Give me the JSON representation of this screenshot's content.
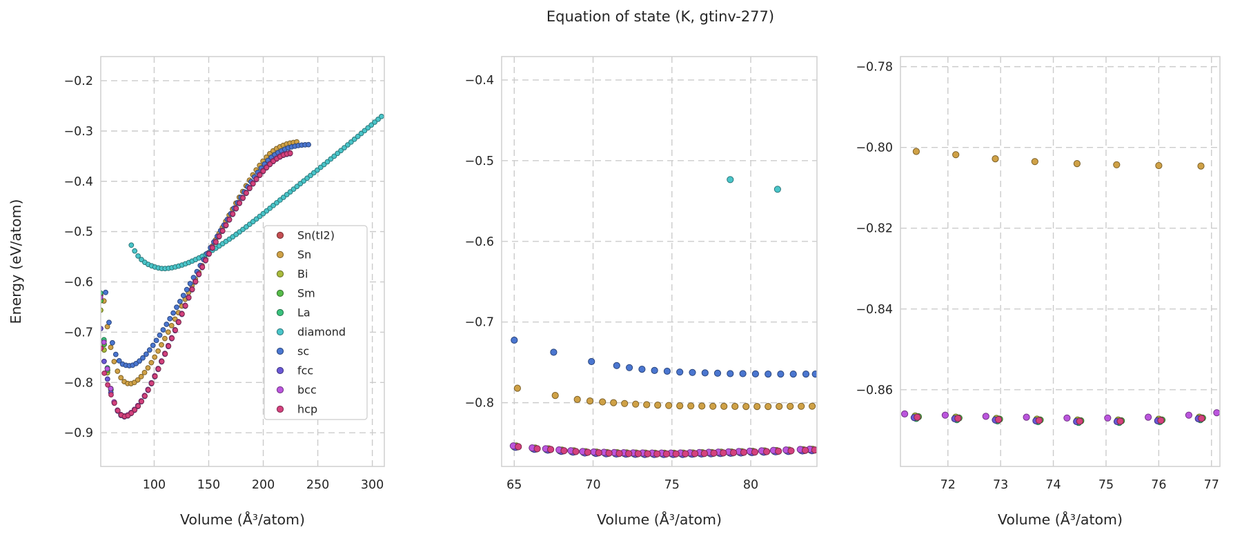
{
  "title": "Equation of state (K, gtinv-277)",
  "ylabel": "Energy (eV/atom)",
  "xlabel": "Volume (Å³/atom)",
  "style": {
    "text_color": "#262626",
    "grid_color": "#cbcbcb",
    "spine_color": "#cfcfcf",
    "background": "#ffffff",
    "series_colors": {
      "Sn(tI2)": "#c44e52",
      "Sn": "#cfa146",
      "Bi": "#a9ba3c",
      "Sm": "#57bb4a",
      "La": "#3ac17d",
      "diamond": "#49c5c9",
      "sc": "#4a76d0",
      "fcc": "#6a58d5",
      "bcc": "#bb55dd",
      "hcp": "#d4417e"
    }
  },
  "legend": {
    "items": [
      "Sn(tI2)",
      "Sn",
      "Bi",
      "Sm",
      "La",
      "diamond",
      "sc",
      "fcc",
      "bcc",
      "hcp"
    ]
  },
  "chart_data": [
    {
      "id": "overview",
      "type": "scatter",
      "xlabel": "Volume (Å³/atom)",
      "ylabel": "Energy (eV/atom)",
      "xlim": [
        51,
        311
      ],
      "ylim": [
        -0.967,
        -0.152
      ],
      "xticks": {
        "values": [
          100,
          150,
          200,
          250,
          300
        ],
        "labels": [
          "100",
          "150",
          "200",
          "250",
          "300"
        ]
      },
      "yticks": {
        "values": [
          -0.9,
          -0.8,
          -0.7,
          -0.6,
          -0.5,
          -0.4,
          -0.3,
          -0.2
        ],
        "labels": [
          "−0.9",
          "−0.8",
          "−0.7",
          "−0.6",
          "−0.5",
          "−0.4",
          "−0.3",
          "−0.2"
        ]
      },
      "marker_r": 3.4,
      "sample_step": 3.1,
      "curve_series": [
        {
          "series": "diamond",
          "anchors": [
            [
              79,
              -0.527
            ],
            [
              85,
              -0.548
            ],
            [
              92,
              -0.562
            ],
            [
              100,
              -0.57
            ],
            [
              108,
              -0.5735
            ],
            [
              118,
              -0.571
            ],
            [
              130,
              -0.563
            ],
            [
              145,
              -0.548
            ],
            [
              160,
              -0.528
            ],
            [
              178,
              -0.501
            ],
            [
              196,
              -0.471
            ],
            [
              215,
              -0.438
            ],
            [
              235,
              -0.403
            ],
            [
              255,
              -0.368
            ],
            [
              275,
              -0.332
            ],
            [
              292,
              -0.301
            ],
            [
              309,
              -0.27
            ]
          ]
        },
        {
          "series": "sc",
          "anchors": [
            [
              55.5,
              -0.621
            ],
            [
              57,
              -0.652
            ],
            [
              59,
              -0.687
            ],
            [
              61,
              -0.714
            ],
            [
              63.5,
              -0.736
            ],
            [
              66,
              -0.75
            ],
            [
              69,
              -0.76
            ],
            [
              72,
              -0.7645
            ],
            [
              76,
              -0.7665
            ],
            [
              80,
              -0.766
            ],
            [
              85,
              -0.76
            ],
            [
              91,
              -0.748
            ],
            [
              98,
              -0.729
            ],
            [
              106,
              -0.703
            ],
            [
              115,
              -0.671
            ],
            [
              125,
              -0.634
            ],
            [
              137,
              -0.588
            ],
            [
              150,
              -0.538
            ],
            [
              164,
              -0.487
            ],
            [
              178,
              -0.437
            ],
            [
              192,
              -0.391
            ],
            [
              206,
              -0.355
            ],
            [
              220,
              -0.336
            ],
            [
              232,
              -0.329
            ],
            [
              242,
              -0.327
            ]
          ]
        },
        {
          "series": "Sn",
          "anchors": [
            [
              54,
              -0.638
            ],
            [
              56,
              -0.672
            ],
            [
              58,
              -0.702
            ],
            [
              60,
              -0.728
            ],
            [
              62.5,
              -0.752
            ],
            [
              65,
              -0.77
            ],
            [
              68,
              -0.785
            ],
            [
              71,
              -0.795
            ],
            [
              74,
              -0.8005
            ],
            [
              77,
              -0.8025
            ],
            [
              81,
              -0.801
            ],
            [
              86,
              -0.793
            ],
            [
              92,
              -0.778
            ],
            [
              99,
              -0.755
            ],
            [
              107,
              -0.724
            ],
            [
              116,
              -0.687
            ],
            [
              126,
              -0.645
            ],
            [
              138,
              -0.593
            ],
            [
              151,
              -0.538
            ],
            [
              165,
              -0.482
            ],
            [
              179,
              -0.428
            ],
            [
              193,
              -0.379
            ],
            [
              207,
              -0.343
            ],
            [
              220,
              -0.327
            ],
            [
              232,
              -0.321
            ]
          ]
        }
      ],
      "cluster": {
        "anchors": [
          [
            51,
            -0.637
          ],
          [
            52.5,
            -0.685
          ],
          [
            54,
            -0.722
          ],
          [
            56,
            -0.757
          ],
          [
            58,
            -0.7865
          ],
          [
            60,
            -0.8105
          ],
          [
            62,
            -0.8295
          ],
          [
            64,
            -0.8435
          ],
          [
            66,
            -0.854
          ],
          [
            68,
            -0.861
          ],
          [
            70,
            -0.8655
          ],
          [
            72.5,
            -0.8675
          ],
          [
            75,
            -0.8665
          ],
          [
            78,
            -0.8625
          ],
          [
            82,
            -0.8545
          ],
          [
            87,
            -0.8415
          ],
          [
            93,
            -0.8205
          ],
          [
            100,
            -0.7905
          ],
          [
            108,
            -0.7525
          ],
          [
            117,
            -0.7075
          ],
          [
            127,
            -0.6555
          ],
          [
            138,
            -0.5985
          ],
          [
            150,
            -0.545
          ],
          [
            165,
            -0.49
          ],
          [
            180,
            -0.437
          ],
          [
            195,
            -0.392
          ],
          [
            208,
            -0.362
          ],
          [
            218,
            -0.348
          ],
          [
            225,
            -0.344
          ]
        ],
        "members": [
          {
            "series": "Sn(tI2)",
            "dv": -0.05,
            "de": 0.0006,
            "tail": 0.01
          },
          {
            "series": "Bi",
            "dv": 0.03,
            "de": 0.0008,
            "tail": -0.02
          },
          {
            "series": "Sm",
            "dv": 0.1,
            "de": -0.0003,
            "tail": 0.0
          },
          {
            "series": "La",
            "dv": -0.1,
            "de": -0.0002,
            "tail": 0.015
          },
          {
            "series": "fcc",
            "dv": -0.02,
            "de": -0.0008,
            "tail": -0.055
          },
          {
            "series": "bcc",
            "dv": -0.16,
            "de": 0.001,
            "tail": 0.005
          },
          {
            "series": "hcp",
            "dv": 0.16,
            "de": 0.0,
            "tail": -0.095
          }
        ]
      },
      "has_legend": true,
      "show_ylabel": true
    },
    {
      "id": "mid-zoom",
      "type": "scatter",
      "xlabel": "Volume (Å³/atom)",
      "xlim": [
        64.2,
        84.2
      ],
      "ylim": [
        -0.879,
        -0.371
      ],
      "xticks": {
        "values": [
          65,
          70,
          75,
          80
        ],
        "labels": [
          "65",
          "70",
          "75",
          "80"
        ]
      },
      "yticks": {
        "values": [
          -0.8,
          -0.7,
          -0.6,
          -0.5,
          -0.4
        ],
        "labels": [
          "−0.8",
          "−0.7",
          "−0.6",
          "−0.5",
          "−0.4"
        ]
      },
      "marker_r": 4.6,
      "plain_series": [
        {
          "series": "diamond",
          "points": [
            [
              78.7,
              -0.5235
            ],
            [
              81.7,
              -0.5355
            ]
          ]
        },
        {
          "series": "sc",
          "points": [
            [
              65.0,
              -0.7225
            ],
            [
              67.5,
              -0.7375
            ],
            [
              69.9,
              -0.749
            ],
            [
              71.5,
              -0.754
            ],
            [
              72.3,
              -0.7565
            ],
            [
              73.1,
              -0.7585
            ],
            [
              73.9,
              -0.76
            ],
            [
              74.7,
              -0.761
            ],
            [
              75.5,
              -0.762
            ],
            [
              76.3,
              -0.7625
            ],
            [
              77.1,
              -0.763
            ],
            [
              77.9,
              -0.7635
            ],
            [
              78.7,
              -0.764
            ],
            [
              79.5,
              -0.764
            ],
            [
              80.3,
              -0.7643
            ],
            [
              81.1,
              -0.7645
            ],
            [
              81.9,
              -0.7645
            ],
            [
              82.7,
              -0.7645
            ],
            [
              83.5,
              -0.7645
            ],
            [
              84.1,
              -0.7645
            ]
          ]
        },
        {
          "series": "Sn",
          "points": [
            [
              65.2,
              -0.782
            ],
            [
              67.6,
              -0.791
            ],
            [
              69.0,
              -0.796
            ],
            [
              69.8,
              -0.7978
            ],
            [
              70.6,
              -0.799
            ],
            [
              71.3,
              -0.8
            ],
            [
              72.0,
              -0.801
            ],
            [
              72.7,
              -0.8018
            ],
            [
              73.4,
              -0.8025
            ],
            [
              74.1,
              -0.803
            ],
            [
              74.8,
              -0.8035
            ],
            [
              75.5,
              -0.8038
            ],
            [
              76.2,
              -0.804
            ],
            [
              76.9,
              -0.8042
            ],
            [
              77.6,
              -0.8044
            ],
            [
              78.3,
              -0.8045
            ],
            [
              79.0,
              -0.8046
            ],
            [
              79.7,
              -0.8047
            ],
            [
              80.4,
              -0.8047
            ],
            [
              81.1,
              -0.8047
            ],
            [
              81.8,
              -0.8046
            ],
            [
              82.5,
              -0.8045
            ],
            [
              83.2,
              -0.8044
            ],
            [
              83.9,
              -0.8043
            ]
          ]
        }
      ],
      "cluster": {
        "base_points": [
          [
            65.1,
            -0.8545
          ],
          [
            66.3,
            -0.857
          ],
          [
            67.15,
            -0.858
          ],
          [
            68.0,
            -0.8595
          ],
          [
            68.75,
            -0.8605
          ],
          [
            69.5,
            -0.8615
          ],
          [
            70.2,
            -0.862
          ],
          [
            70.85,
            -0.8625
          ],
          [
            71.5,
            -0.8628
          ],
          [
            72.1,
            -0.863
          ],
          [
            72.7,
            -0.8632
          ],
          [
            73.3,
            -0.8633
          ],
          [
            73.9,
            -0.8634
          ],
          [
            74.5,
            -0.8634
          ],
          [
            75.1,
            -0.8634
          ],
          [
            75.7,
            -0.8633
          ],
          [
            76.3,
            -0.8631
          ],
          [
            76.9,
            -0.8628
          ],
          [
            77.5,
            -0.8625
          ],
          [
            78.1,
            -0.8622
          ],
          [
            78.75,
            -0.8619
          ],
          [
            79.4,
            -0.8615
          ],
          [
            80.1,
            -0.8611
          ],
          [
            80.85,
            -0.8606
          ],
          [
            81.6,
            -0.8601
          ],
          [
            82.4,
            -0.8596
          ],
          [
            83.3,
            -0.859
          ],
          [
            83.9,
            -0.8586
          ]
        ],
        "members": [
          {
            "series": "Sn(tI2)",
            "dv": -0.05,
            "de": 0.0006
          },
          {
            "series": "Bi",
            "dv": 0.03,
            "de": 0.0008
          },
          {
            "series": "Sm",
            "dv": 0.1,
            "de": -0.0003
          },
          {
            "series": "La",
            "dv": -0.1,
            "de": -0.0002
          },
          {
            "series": "fcc",
            "dv": -0.02,
            "de": -0.0008
          },
          {
            "series": "bcc",
            "dv": -0.16,
            "de": 0.001
          },
          {
            "series": "hcp",
            "dv": 0.16,
            "de": 0.0
          }
        ]
      },
      "has_legend": false,
      "show_ylabel": false
    },
    {
      "id": "right-zoom",
      "type": "scatter",
      "xlabel": "Volume (Å³/atom)",
      "xlim": [
        71.1,
        77.16
      ],
      "ylim": [
        -0.879,
        -0.7775
      ],
      "xticks": {
        "values": [
          72,
          73,
          74,
          75,
          76,
          77
        ],
        "labels": [
          "72",
          "73",
          "74",
          "75",
          "76",
          "77"
        ]
      },
      "yticks": {
        "values": [
          -0.86,
          -0.84,
          -0.82,
          -0.8,
          -0.78
        ],
        "labels": [
          "−0.86",
          "−0.84",
          "−0.82",
          "−0.80",
          "−0.78"
        ]
      },
      "marker_r": 4.6,
      "plain_series": [
        {
          "series": "Sn",
          "points": [
            [
              71.4,
              -0.801
            ],
            [
              72.15,
              -0.8018
            ],
            [
              72.9,
              -0.8028
            ],
            [
              73.65,
              -0.8035
            ],
            [
              74.45,
              -0.804
            ],
            [
              75.2,
              -0.8043
            ],
            [
              76.0,
              -0.8045
            ],
            [
              76.8,
              -0.8046
            ]
          ]
        }
      ],
      "cluster": {
        "base_points": [
          [
            71.18,
            -0.866
          ],
          [
            71.95,
            -0.8663
          ],
          [
            72.72,
            -0.8666
          ],
          [
            73.49,
            -0.8668
          ],
          [
            74.26,
            -0.867
          ],
          [
            75.03,
            -0.867
          ],
          [
            75.8,
            -0.8668
          ],
          [
            76.57,
            -0.8663
          ],
          [
            77.1,
            -0.8657
          ]
        ],
        "members": [
          {
            "series": "Sn(tI2)",
            "dv": 0.21,
            "de": -0.0006
          },
          {
            "series": "Bi",
            "dv": 0.2,
            "de": -0.0005
          },
          {
            "series": "Sm",
            "dv": 0.26,
            "de": -0.0007
          },
          {
            "series": "La",
            "dv": 0.22,
            "de": -0.0011
          },
          {
            "series": "fcc",
            "dv": 0.18,
            "de": -0.0009
          },
          {
            "series": "bcc",
            "dv": 0.0,
            "de": 0.0
          },
          {
            "series": "hcp",
            "dv": 0.24,
            "de": -0.0008
          }
        ]
      },
      "has_legend": false,
      "show_ylabel": false
    }
  ]
}
